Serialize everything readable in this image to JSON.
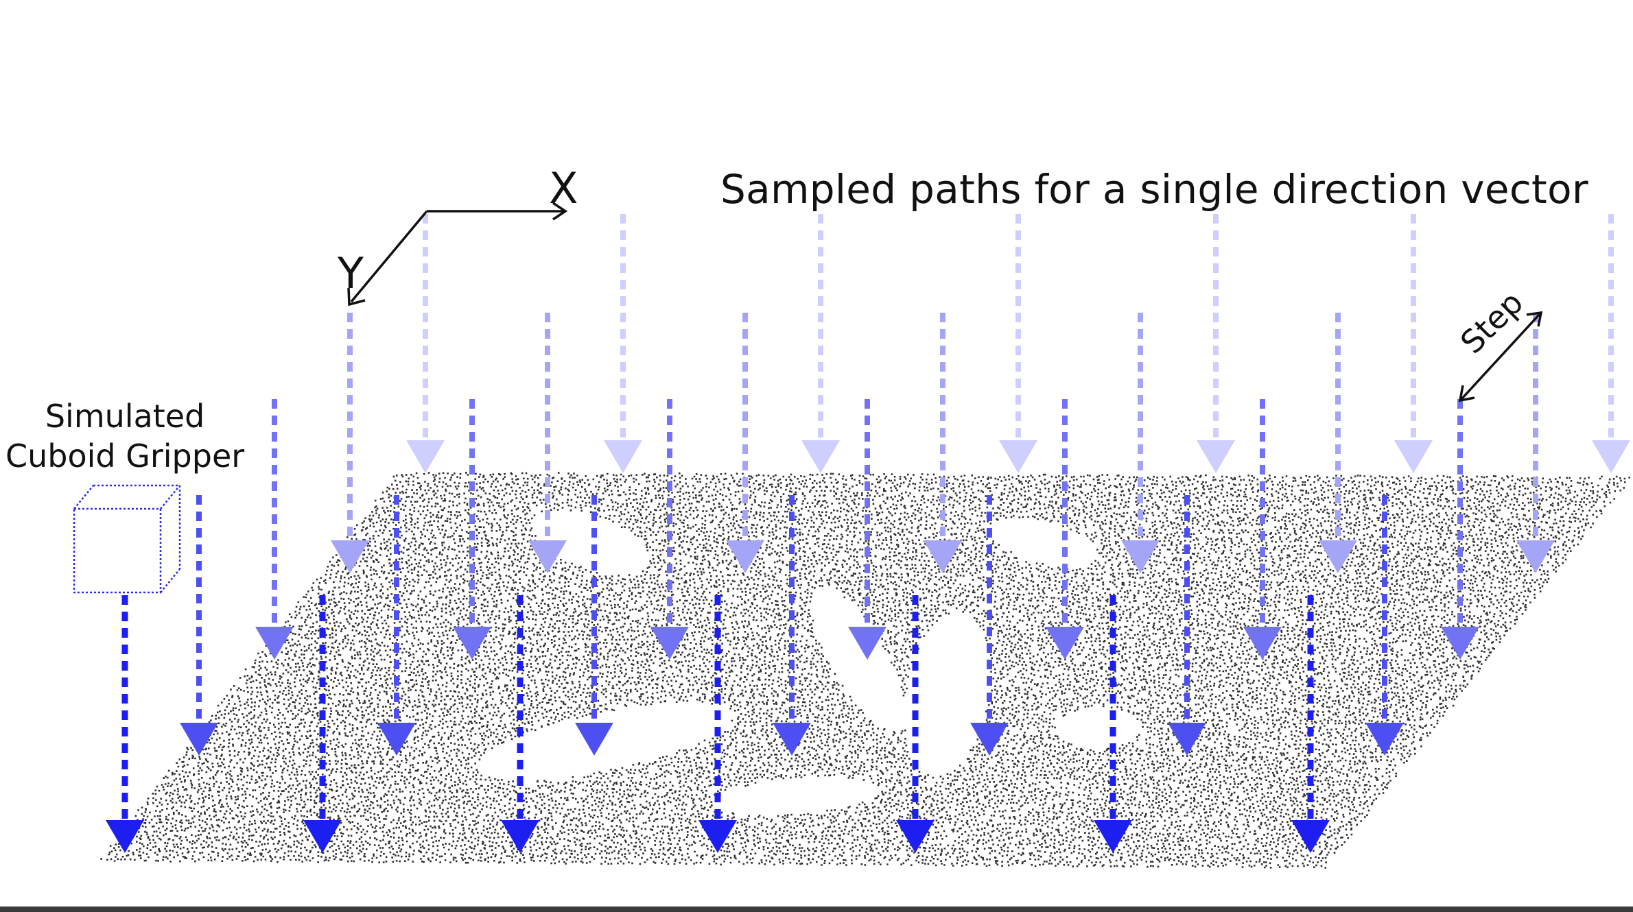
{
  "title": "Sampled paths for a single direction vector",
  "gripper": {
    "label_line1": "Simulated",
    "label_line2": "Cuboid Gripper"
  },
  "axes": {
    "x_label": "X",
    "y_label": "Y"
  },
  "step_label": "Step",
  "colors": {
    "path_row_1": "#1c1ff0",
    "path_row_2": "#4d4ff2",
    "path_row_3": "#7272f4",
    "path_row_4": "#a5a5f8",
    "path_row_5": "#ceceff",
    "points": "#2e2e2e",
    "gripper": "#2a2ae8"
  }
}
